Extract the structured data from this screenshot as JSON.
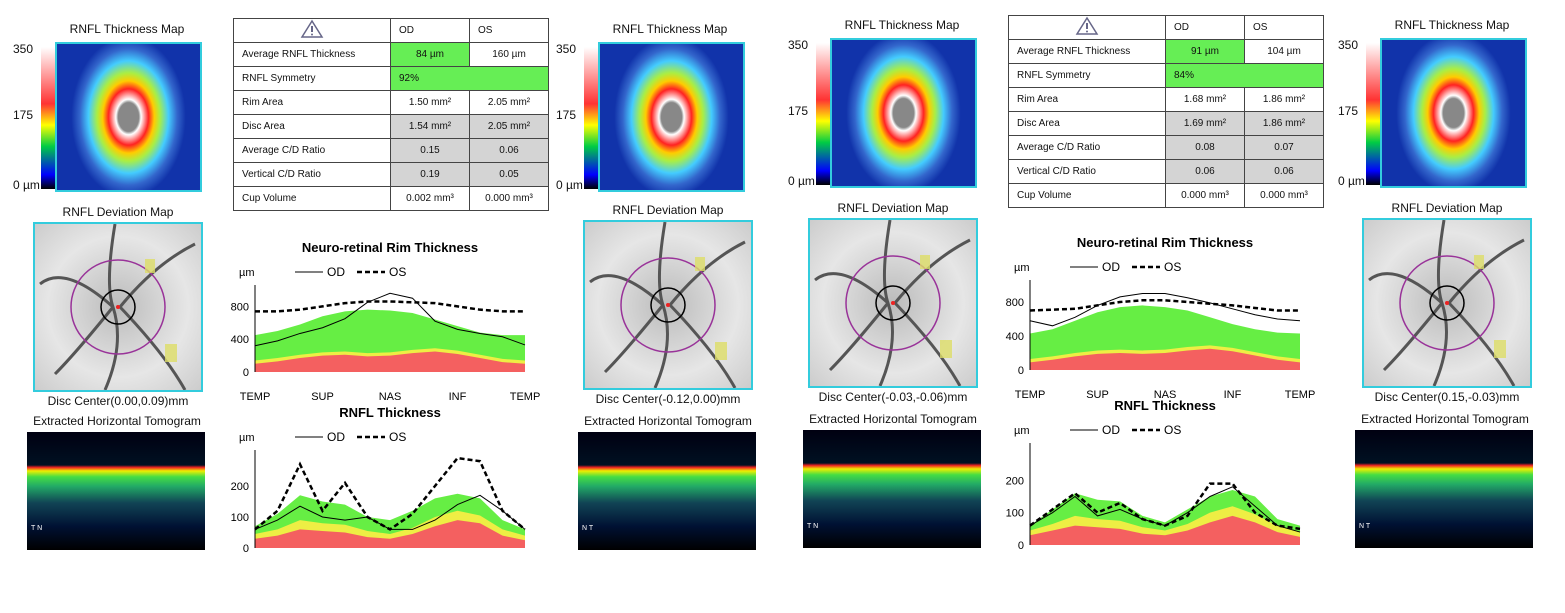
{
  "panels": [
    {
      "od_map_title": "RNFL Thickness Map",
      "os_map_title": "RNFL Thickness Map",
      "scale": {
        "max": "350",
        "mid": "175",
        "min": "0 µm"
      },
      "table": {
        "headers": [
          "OD",
          "OS"
        ],
        "rows": [
          {
            "label": "Average RNFL Thickness",
            "od": "84 µm",
            "os": "160 µm"
          },
          {
            "label": "RNFL Symmetry",
            "od": "92%"
          },
          {
            "label": "Rim Area",
            "od": "1.50 mm²",
            "os": "2.05 mm²"
          },
          {
            "label": "Disc Area",
            "od": "1.54 mm²",
            "os": "2.05 mm²"
          },
          {
            "label": "Average C/D Ratio",
            "od": "0.15",
            "os": "0.06"
          },
          {
            "label": "Vertical C/D Ratio",
            "od": "0.19",
            "os": "0.05"
          },
          {
            "label": "Cup Volume",
            "od": "0.002 mm³",
            "os": "0.000 mm³"
          }
        ]
      },
      "od_dev_title": "RNFL Deviation Map",
      "os_dev_title": "RNFL Deviation Map",
      "od_disc_center": "Disc Center(0.00,0.09)mm",
      "os_disc_center": "Disc Center(-0.12,0.00)mm",
      "tomo_title": "Extracted Horizontal Tomogram",
      "od_tomo_marks": "T N",
      "os_tomo_marks": "N T"
    },
    {
      "od_map_title": "RNFL Thickness Map",
      "os_map_title": "RNFL Thickness Map",
      "scale": {
        "max": "350",
        "mid": "175",
        "min": "0 µm"
      },
      "table": {
        "headers": [
          "OD",
          "OS"
        ],
        "rows": [
          {
            "label": "Average RNFL Thickness",
            "od": "91 µm",
            "os": "104 µm"
          },
          {
            "label": "RNFL Symmetry",
            "od": "84%"
          },
          {
            "label": "Rim Area",
            "od": "1.68 mm²",
            "os": "1.86 mm²"
          },
          {
            "label": "Disc Area",
            "od": "1.69 mm²",
            "os": "1.86 mm²"
          },
          {
            "label": "Average C/D Ratio",
            "od": "0.08",
            "os": "0.07"
          },
          {
            "label": "Vertical C/D Ratio",
            "od": "0.06",
            "os": "0.06"
          },
          {
            "label": "Cup Volume",
            "od": "0.000 mm³",
            "os": "0.000 mm³"
          }
        ]
      },
      "od_dev_title": "RNFL Deviation Map",
      "os_dev_title": "RNFL Deviation Map",
      "od_disc_center": "Disc Center(-0.03,-0.06)mm",
      "os_disc_center": "Disc Center(0.15,-0.03)mm",
      "tomo_title": "Extracted Horizontal Tomogram",
      "od_tomo_marks": "T N",
      "os_tomo_marks": "N T"
    }
  ],
  "chart_data": [
    {
      "type": "line",
      "title": "Neuro-retinal Rim Thickness",
      "ylabel": "µm",
      "ylim": [
        0,
        1000
      ],
      "yticks": [
        "0",
        "400",
        "800"
      ],
      "ytickvals": [
        0,
        400,
        800
      ],
      "xticks": [
        "TEMP",
        "SUP",
        "NAS",
        "INF",
        "TEMP"
      ],
      "legend": [
        "OD",
        "OS"
      ],
      "bands": {
        "red": [
          100,
          130,
          170,
          200,
          210,
          190,
          200,
          230,
          250,
          220,
          170,
          120,
          100
        ],
        "yellow": [
          140,
          170,
          210,
          240,
          250,
          230,
          240,
          270,
          290,
          260,
          210,
          160,
          140
        ],
        "green": [
          450,
          500,
          580,
          680,
          740,
          760,
          750,
          720,
          640,
          560,
          480,
          450,
          450
        ]
      },
      "series": [
        {
          "name": "OD",
          "values": [
            320,
            380,
            470,
            540,
            650,
            850,
            960,
            900,
            620,
            520,
            470,
            430,
            330
          ]
        },
        {
          "name": "OS",
          "values": [
            740,
            740,
            760,
            800,
            840,
            860,
            860,
            850,
            840,
            800,
            760,
            740,
            740
          ]
        }
      ]
    },
    {
      "type": "line",
      "title": "RNFL Thickness",
      "ylabel": "µm",
      "ylim": [
        0,
        300
      ],
      "yticks": [
        "0",
        "100",
        "200"
      ],
      "ytickvals": [
        0,
        100,
        200
      ],
      "xticks": [],
      "legend": [
        "OD",
        "OS"
      ],
      "bands": {
        "red": [
          30,
          40,
          60,
          55,
          50,
          35,
          30,
          45,
          70,
          90,
          80,
          40,
          25
        ],
        "yellow": [
          45,
          60,
          90,
          80,
          75,
          55,
          45,
          65,
          100,
          120,
          105,
          60,
          40
        ],
        "green": [
          70,
          110,
          170,
          150,
          140,
          100,
          90,
          120,
          160,
          175,
          160,
          90,
          60
        ]
      },
      "series": [
        {
          "name": "OD",
          "values": [
            60,
            90,
            135,
            100,
            90,
            100,
            60,
            60,
            90,
            140,
            170,
            120,
            60
          ]
        },
        {
          "name": "OS",
          "values": [
            60,
            120,
            270,
            120,
            210,
            100,
            60,
            110,
            200,
            290,
            280,
            120,
            60
          ]
        }
      ]
    },
    {
      "type": "line",
      "title": "Neuro-retinal Rim Thickness",
      "ylabel": "µm",
      "ylim": [
        0,
        1000
      ],
      "yticks": [
        "0",
        "400",
        "800"
      ],
      "ytickvals": [
        0,
        400,
        800
      ],
      "xticks": [
        "TEMP",
        "SUP",
        "NAS",
        "INF",
        "TEMP"
      ],
      "legend": [
        "OD",
        "OS"
      ],
      "bands": {
        "red": [
          90,
          120,
          160,
          190,
          200,
          190,
          200,
          230,
          250,
          220,
          170,
          120,
          90
        ],
        "yellow": [
          130,
          160,
          200,
          230,
          240,
          230,
          240,
          270,
          290,
          260,
          210,
          160,
          130
        ],
        "green": [
          430,
          480,
          580,
          680,
          740,
          760,
          740,
          700,
          620,
          540,
          480,
          440,
          430
        ]
      },
      "series": [
        {
          "name": "OD",
          "values": [
            580,
            520,
            620,
            760,
            860,
            900,
            900,
            850,
            790,
            720,
            650,
            600,
            580
          ]
        },
        {
          "name": "OS",
          "values": [
            700,
            710,
            720,
            760,
            800,
            820,
            820,
            800,
            780,
            760,
            730,
            700,
            700
          ]
        }
      ]
    },
    {
      "type": "line",
      "title": "RNFL Thickness",
      "ylabel": "µm",
      "ylim": [
        0,
        300
      ],
      "yticks": [
        "0",
        "100",
        "200"
      ],
      "ytickvals": [
        0,
        100,
        200
      ],
      "xticks": [],
      "legend": [
        "OD",
        "OS"
      ],
      "bands": {
        "red": [
          30,
          45,
          60,
          55,
          50,
          35,
          30,
          45,
          70,
          90,
          70,
          40,
          25
        ],
        "yellow": [
          45,
          65,
          90,
          80,
          75,
          55,
          45,
          65,
          100,
          120,
          95,
          60,
          40
        ],
        "green": [
          60,
          110,
          160,
          140,
          135,
          90,
          70,
          110,
          150,
          170,
          150,
          80,
          60
        ]
      },
      "series": [
        {
          "name": "OD",
          "values": [
            60,
            100,
            150,
            90,
            110,
            80,
            60,
            100,
            150,
            180,
            120,
            60,
            40
          ]
        },
        {
          "name": "OS",
          "values": [
            60,
            110,
            160,
            100,
            130,
            80,
            60,
            90,
            190,
            190,
            100,
            60,
            50
          ]
        }
      ]
    }
  ]
}
